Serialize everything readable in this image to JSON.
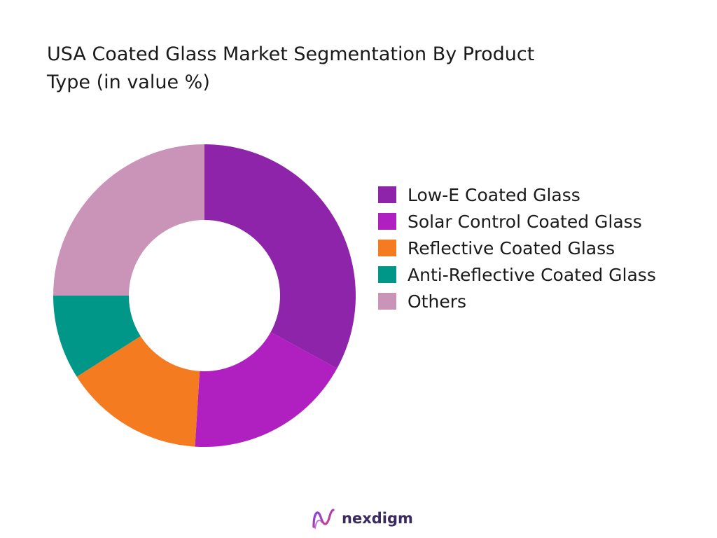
{
  "colors": {
    "low_e": "#8e24aa",
    "solar_control": "#b01fbf",
    "reflective": "#f47b20",
    "anti_reflective": "#009688",
    "others": "#c994b7",
    "brand": "#3a2a5e"
  },
  "chart_data": {
    "type": "pie",
    "subtype": "donut",
    "title": "USA Coated Glass Market Segmentation By Product\nType (in value %)",
    "legend_position": "right",
    "categories": [
      "Low-E Coated Glass",
      "Solar Control Coated Glass",
      "Reflective Coated Glass",
      "Anti-Reflective Coated Glass",
      "Others"
    ],
    "values": [
      33,
      18,
      15,
      9,
      25
    ],
    "colors": [
      "#8e24aa",
      "#b01fbf",
      "#f47b20",
      "#009688",
      "#c994b7"
    ]
  },
  "brand": {
    "name": "nexdigm",
    "icon": "nexdigm-logo-icon"
  }
}
